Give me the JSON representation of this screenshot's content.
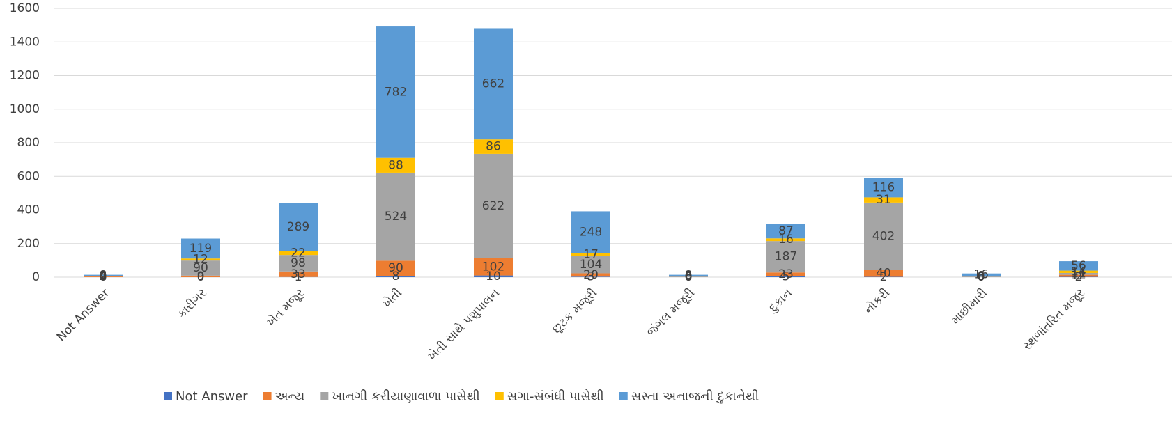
{
  "chart_data": {
    "type": "stacked_bar",
    "categories": [
      "Not Answer",
      "કારીગર",
      "ખેત મજૂર",
      "ખેતી",
      "ખેતી સાથે પશુપાલન",
      "છૂટક મજૂરી",
      "જંગલ મજૂરી",
      "દુકાન",
      "નોકરી",
      "માછીમારી",
      "સ્થળાંતરિત મજૂર"
    ],
    "series": [
      {
        "name": "Not Answer",
        "color": "#4472c4",
        "values": [
          0,
          0,
          1,
          8,
          10,
          3,
          0,
          5,
          2,
          0,
          2
        ]
      },
      {
        "name": "અન્ય",
        "color": "#ed7d31",
        "values": [
          4,
          9,
          33,
          90,
          102,
          20,
          0,
          23,
          40,
          0,
          12
        ]
      },
      {
        "name": "ખાનગી કરીયાણાવાળા પાસેથી",
        "color": "#a5a5a5",
        "values": [
          2,
          90,
          98,
          524,
          622,
          104,
          6,
          187,
          402,
          6,
          11
        ]
      },
      {
        "name": "સગા-સંબંધી પાસેથી",
        "color": "#ffc000",
        "values": [
          0,
          12,
          22,
          88,
          86,
          17,
          0,
          16,
          31,
          0,
          14
        ]
      },
      {
        "name": "સસ્તા અનાજની દુકાનેથી",
        "color": "#5b9bd5",
        "values": [
          8,
          119,
          289,
          782,
          662,
          248,
          8,
          87,
          116,
          16,
          56
        ]
      }
    ],
    "ylim": [
      0,
      1600
    ],
    "yticks": [
      0,
      200,
      400,
      600,
      800,
      1000,
      1200,
      1400,
      1600
    ],
    "grid": true,
    "legend": "bottom"
  }
}
